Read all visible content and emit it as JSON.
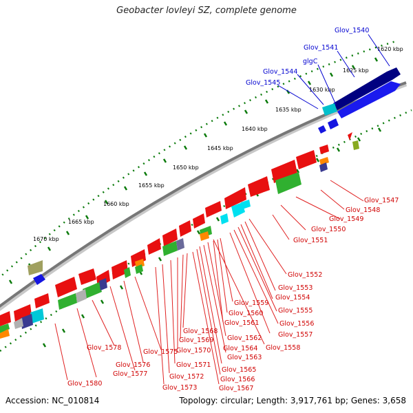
{
  "title": "Geobacter lovleyi SZ, complete genome",
  "accession": "Accession: NC_010814",
  "summary": "Topology: circular; Length: 3,917,761 bp; Genes: 3,658",
  "colors": {
    "forward_cds": "#e81010",
    "reverse_cds": "#1515e0",
    "rna": "#00c8d8",
    "green": "#30b030",
    "backbone": "#808080",
    "tick": "#0a7a0a",
    "label_red": "#d00000",
    "label_blue": "#0000d0"
  },
  "ticks": [
    "1620 kbp",
    "1625 kbp",
    "1630 kbp",
    "1635 kbp",
    "1640 kbp",
    "1645 kbp",
    "1650 kbp",
    "1655 kbp",
    "1660 kbp",
    "1665 kbp",
    "1670 kbp"
  ],
  "gene_labels_blue": [
    "Glov_1540",
    "Glov_1541",
    "glgC",
    "Glov_1544",
    "Glov_1545"
  ],
  "gene_labels_red": [
    "Glov_1547",
    "Glov_1548",
    "Glov_1549",
    "Glov_1550",
    "Glov_1551",
    "Glov_1552",
    "Glov_1553",
    "Glov_1554",
    "Glov_1555",
    "Glov_1556",
    "Glov_1557",
    "Glov_1558",
    "Glov_1559",
    "Glov_1560",
    "Glov_1561",
    "Glov_1562",
    "Glov_1563",
    "Glov_1564",
    "Glov_1565",
    "Glov_1566",
    "Glov_1567",
    "Glov_1568",
    "Glov_1569",
    "Glov_1570",
    "Glov_1571",
    "Glov_1572",
    "Glov_1573",
    "Glov_1575",
    "Glov_1576",
    "Glov_1577",
    "Glov_1578",
    "Glov_1580"
  ]
}
